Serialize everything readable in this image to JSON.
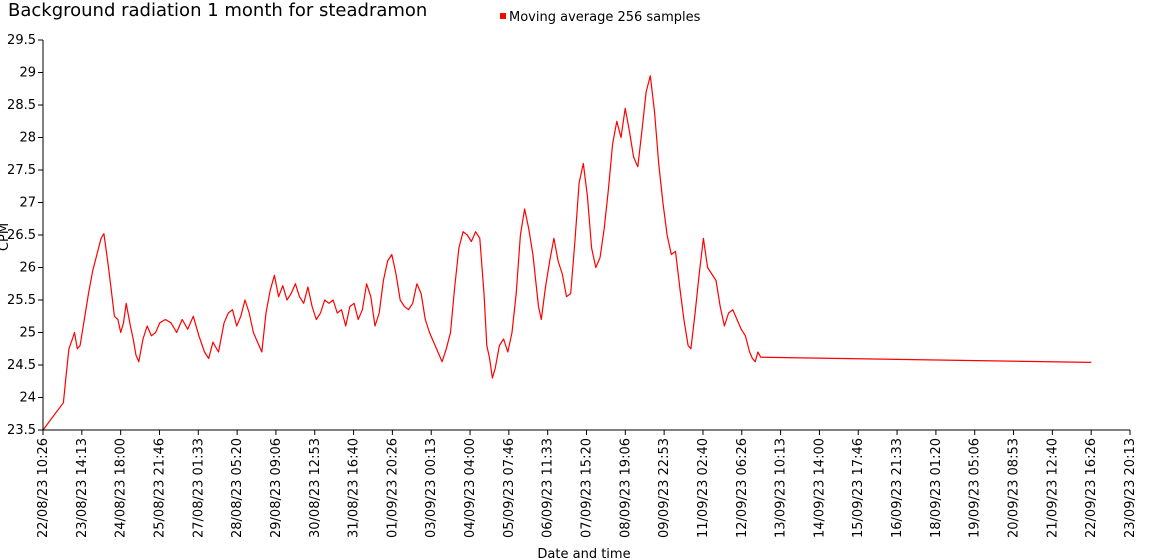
{
  "chart_data": {
    "type": "line",
    "title": "Background radiation 1 month for steadramon",
    "xlabel": "Date and time",
    "ylabel": "CPM",
    "ylim": [
      23.5,
      29.5
    ],
    "yticks": [
      "23.5",
      "24",
      "24.5",
      "25",
      "25.5",
      "26",
      "26.5",
      "27",
      "27.5",
      "28",
      "28.5",
      "29",
      "29.5"
    ],
    "xticks": [
      "22/08/23 10:26",
      "23/08/23 14:13",
      "24/08/23 18:00",
      "25/08/23 21:46",
      "27/08/23 01:33",
      "28/08/23 05:20",
      "29/08/23 09:06",
      "30/08/23 12:53",
      "31/08/23 16:40",
      "01/09/23 20:26",
      "03/09/23 00:13",
      "04/09/23 04:00",
      "05/09/23 07:46",
      "06/09/23 11:33",
      "07/09/23 15:20",
      "08/09/23 19:06",
      "09/09/23 22:53",
      "11/09/23 02:40",
      "12/09/23 06:26",
      "13/09/23 10:13",
      "14/09/23 14:00",
      "15/09/23 17:46",
      "16/09/23 21:33",
      "18/09/23 01:20",
      "19/09/23 05:06",
      "20/09/23 08:53",
      "21/09/23 12:40",
      "22/09/23 16:26",
      "23/09/23 20:13"
    ],
    "grid": false,
    "legend_position": "top",
    "series": [
      {
        "name": "Moving average 256 samples",
        "color": "#ff0000",
        "points": [
          [
            "22/08/23 10:26",
            23.5
          ],
          [
            "23/08/23 01:00",
            23.92
          ],
          [
            "23/08/23 03:00",
            24.35
          ],
          [
            "23/08/23 05:00",
            24.75
          ],
          [
            "23/08/23 07:30",
            24.9
          ],
          [
            "23/08/23 09:00",
            25.0
          ],
          [
            "23/08/23 11:00",
            24.75
          ],
          [
            "23/08/23 13:00",
            24.8
          ],
          [
            "23/08/23 16:00",
            25.2
          ],
          [
            "23/08/23 19:00",
            25.6
          ],
          [
            "23/08/23 22:00",
            25.95
          ],
          [
            "24/08/23 01:00",
            26.2
          ],
          [
            "24/08/23 04:00",
            26.45
          ],
          [
            "24/08/23 06:00",
            26.52
          ],
          [
            "24/08/23 09:00",
            26.05
          ],
          [
            "24/08/23 11:00",
            25.7
          ],
          [
            "24/08/23 13:30",
            25.25
          ],
          [
            "24/08/23 16:00",
            25.2
          ],
          [
            "24/08/23 18:00",
            25.0
          ],
          [
            "24/08/23 20:00",
            25.15
          ],
          [
            "24/08/23 22:00",
            25.45
          ],
          [
            "25/08/23 01:00",
            25.1
          ],
          [
            "25/08/23 03:00",
            24.9
          ],
          [
            "25/08/23 05:00",
            24.65
          ],
          [
            "25/08/23 07:00",
            24.55
          ],
          [
            "25/08/23 10:00",
            24.9
          ],
          [
            "25/08/23 13:00",
            25.1
          ],
          [
            "25/08/23 16:00",
            24.95
          ],
          [
            "25/08/23 19:00",
            25.0
          ],
          [
            "25/08/23 22:00",
            25.15
          ],
          [
            "26/08/23 02:00",
            25.2
          ],
          [
            "26/08/23 06:00",
            25.15
          ],
          [
            "26/08/23 10:00",
            25.0
          ],
          [
            "26/08/23 14:00",
            25.2
          ],
          [
            "26/08/23 18:00",
            25.05
          ],
          [
            "26/08/23 22:00",
            25.25
          ],
          [
            "27/08/23 02:00",
            24.95
          ],
          [
            "27/08/23 06:00",
            24.7
          ],
          [
            "27/08/23 09:00",
            24.6
          ],
          [
            "27/08/23 12:00",
            24.85
          ],
          [
            "27/08/23 16:00",
            24.7
          ],
          [
            "27/08/23 20:00",
            25.15
          ],
          [
            "27/08/23 23:00",
            25.3
          ],
          [
            "28/08/23 02:00",
            25.35
          ],
          [
            "28/08/23 05:00",
            25.1
          ],
          [
            "28/08/23 08:00",
            25.25
          ],
          [
            "28/08/23 11:00",
            25.5
          ],
          [
            "28/08/23 14:00",
            25.3
          ],
          [
            "28/08/23 17:00",
            25.0
          ],
          [
            "28/08/23 20:00",
            24.85
          ],
          [
            "28/08/23 23:00",
            24.7
          ],
          [
            "29/08/23 02:00",
            25.3
          ],
          [
            "29/08/23 05:00",
            25.65
          ],
          [
            "29/08/23 08:00",
            25.88
          ],
          [
            "29/08/23 11:00",
            25.55
          ],
          [
            "29/08/23 14:00",
            25.72
          ],
          [
            "29/08/23 17:00",
            25.5
          ],
          [
            "29/08/23 20:00",
            25.6
          ],
          [
            "29/08/23 23:00",
            25.75
          ],
          [
            "30/08/23 02:00",
            25.55
          ],
          [
            "30/08/23 05:00",
            25.45
          ],
          [
            "30/08/23 08:00",
            25.7
          ],
          [
            "30/08/23 11:00",
            25.4
          ],
          [
            "30/08/23 14:00",
            25.2
          ],
          [
            "30/08/23 17:00",
            25.3
          ],
          [
            "30/08/23 20:00",
            25.5
          ],
          [
            "30/08/23 23:00",
            25.45
          ],
          [
            "31/08/23 02:00",
            25.5
          ],
          [
            "31/08/23 05:00",
            25.3
          ],
          [
            "31/08/23 08:00",
            25.35
          ],
          [
            "31/08/23 11:00",
            25.1
          ],
          [
            "31/08/23 14:00",
            25.4
          ],
          [
            "31/08/23 17:00",
            25.45
          ],
          [
            "31/08/23 20:00",
            25.2
          ],
          [
            "31/08/23 23:00",
            25.35
          ],
          [
            "01/09/23 02:00",
            25.75
          ],
          [
            "01/09/23 05:00",
            25.55
          ],
          [
            "01/09/23 08:00",
            25.1
          ],
          [
            "01/09/23 11:00",
            25.3
          ],
          [
            "01/09/23 14:00",
            25.8
          ],
          [
            "01/09/23 17:00",
            26.1
          ],
          [
            "01/09/23 20:00",
            26.2
          ],
          [
            "01/09/23 23:00",
            25.9
          ],
          [
            "02/09/23 02:00",
            25.5
          ],
          [
            "02/09/23 05:00",
            25.4
          ],
          [
            "02/09/23 08:00",
            25.35
          ],
          [
            "02/09/23 11:00",
            25.45
          ],
          [
            "02/09/23 14:00",
            25.75
          ],
          [
            "02/09/23 17:00",
            25.6
          ],
          [
            "02/09/23 20:00",
            25.2
          ],
          [
            "02/09/23 23:00",
            25.0
          ],
          [
            "03/09/23 02:00",
            24.85
          ],
          [
            "03/09/23 05:00",
            24.7
          ],
          [
            "03/09/23 08:00",
            24.55
          ],
          [
            "03/09/23 11:00",
            24.75
          ],
          [
            "03/09/23 14:00",
            25.0
          ],
          [
            "03/09/23 17:00",
            25.7
          ],
          [
            "03/09/23 20:00",
            26.3
          ],
          [
            "03/09/23 23:00",
            26.55
          ],
          [
            "04/09/23 02:00",
            26.5
          ],
          [
            "04/09/23 05:00",
            26.4
          ],
          [
            "04/09/23 08:00",
            26.55
          ],
          [
            "04/09/23 11:00",
            26.45
          ],
          [
            "04/09/23 14:00",
            25.6
          ],
          [
            "04/09/23 16:00",
            24.8
          ],
          [
            "04/09/23 18:00",
            24.6
          ],
          [
            "04/09/23 20:00",
            24.3
          ],
          [
            "04/09/23 22:00",
            24.45
          ],
          [
            "05/09/23 01:00",
            24.8
          ],
          [
            "05/09/23 04:00",
            24.9
          ],
          [
            "05/09/23 07:00",
            24.7
          ],
          [
            "05/09/23 10:00",
            25.0
          ],
          [
            "05/09/23 13:00",
            25.6
          ],
          [
            "05/09/23 16:00",
            26.5
          ],
          [
            "05/09/23 19:00",
            26.9
          ],
          [
            "05/09/23 22:00",
            26.6
          ],
          [
            "06/09/23 01:00",
            26.2
          ],
          [
            "06/09/23 03:00",
            25.8
          ],
          [
            "06/09/23 05:00",
            25.4
          ],
          [
            "06/09/23 07:00",
            25.2
          ],
          [
            "06/09/23 10:00",
            25.7
          ],
          [
            "06/09/23 13:00",
            26.1
          ],
          [
            "06/09/23 16:00",
            26.45
          ],
          [
            "06/09/23 19:00",
            26.1
          ],
          [
            "06/09/23 22:00",
            25.9
          ],
          [
            "07/09/23 01:00",
            25.55
          ],
          [
            "07/09/23 04:00",
            25.6
          ],
          [
            "07/09/23 07:00",
            26.4
          ],
          [
            "07/09/23 10:00",
            27.3
          ],
          [
            "07/09/23 13:00",
            27.6
          ],
          [
            "07/09/23 16:00",
            27.1
          ],
          [
            "07/09/23 19:00",
            26.3
          ],
          [
            "07/09/23 22:00",
            26.0
          ],
          [
            "08/09/23 01:00",
            26.15
          ],
          [
            "08/09/23 04:00",
            26.6
          ],
          [
            "08/09/23 07:00",
            27.2
          ],
          [
            "08/09/23 10:00",
            27.9
          ],
          [
            "08/09/23 13:00",
            28.25
          ],
          [
            "08/09/23 16:00",
            28.0
          ],
          [
            "08/09/23 19:00",
            28.45
          ],
          [
            "08/09/23 22:00",
            28.1
          ],
          [
            "09/09/23 01:00",
            27.7
          ],
          [
            "09/09/23 04:00",
            27.55
          ],
          [
            "09/09/23 07:00",
            28.1
          ],
          [
            "09/09/23 10:00",
            28.7
          ],
          [
            "09/09/23 13:00",
            28.95
          ],
          [
            "09/09/23 16:00",
            28.4
          ],
          [
            "09/09/23 19:00",
            27.6
          ],
          [
            "09/09/23 22:00",
            27.0
          ],
          [
            "10/09/23 01:00",
            26.5
          ],
          [
            "10/09/23 04:00",
            26.2
          ],
          [
            "10/09/23 07:00",
            26.25
          ],
          [
            "10/09/23 10:00",
            25.7
          ],
          [
            "10/09/23 13:00",
            25.2
          ],
          [
            "10/09/23 16:00",
            24.8
          ],
          [
            "10/09/23 18:00",
            24.75
          ],
          [
            "10/09/23 21:00",
            25.3
          ],
          [
            "11/09/23 00:00",
            25.9
          ],
          [
            "11/09/23 03:00",
            26.45
          ],
          [
            "11/09/23 06:00",
            26.0
          ],
          [
            "11/09/23 09:00",
            25.9
          ],
          [
            "11/09/23 12:00",
            25.8
          ],
          [
            "11/09/23 15:00",
            25.4
          ],
          [
            "11/09/23 18:00",
            25.1
          ],
          [
            "11/09/23 21:00",
            25.3
          ],
          [
            "12/09/23 00:00",
            25.35
          ],
          [
            "12/09/23 03:00",
            25.2
          ],
          [
            "12/09/23 06:00",
            25.05
          ],
          [
            "12/09/23 09:00",
            24.95
          ],
          [
            "12/09/23 12:00",
            24.7
          ],
          [
            "12/09/23 14:00",
            24.6
          ],
          [
            "12/09/23 16:00",
            24.55
          ],
          [
            "12/09/23 18:00",
            24.7
          ],
          [
            "12/09/23 20:00",
            24.62
          ],
          [
            "22/09/23 16:26",
            24.54
          ]
        ]
      }
    ]
  }
}
